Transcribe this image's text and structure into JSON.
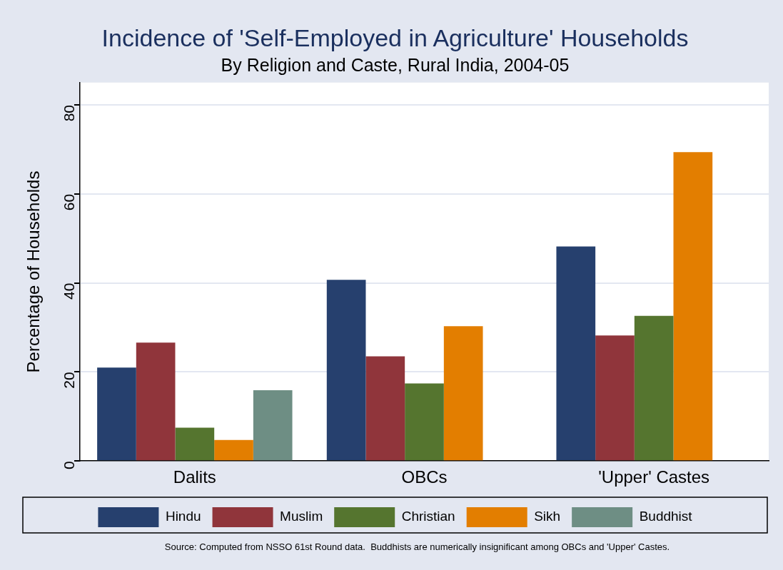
{
  "chart_data": {
    "type": "bar",
    "title": "Incidence of 'Self-Employed in Agriculture' Households",
    "subtitle": "By Religion and Caste, Rural India, 2004-05",
    "ylabel": "Percentage of Households",
    "categories": [
      "Dalits",
      "OBCs",
      "'Upper' Castes"
    ],
    "series": [
      {
        "name": "Hindu",
        "color": "#26406e",
        "values": [
          21.0,
          40.7,
          48.2
        ]
      },
      {
        "name": "Muslim",
        "color": "#90353b",
        "values": [
          26.6,
          23.5,
          28.2
        ]
      },
      {
        "name": "Christian",
        "color": "#55752f",
        "values": [
          7.5,
          17.4,
          32.6
        ]
      },
      {
        "name": "Sikh",
        "color": "#e37e00",
        "values": [
          4.7,
          30.3,
          69.4
        ]
      },
      {
        "name": "Buddhist",
        "color": "#6e8e84",
        "values": [
          15.9,
          null,
          null
        ]
      }
    ],
    "ylim": [
      0,
      85
    ],
    "yticks": [
      0,
      20,
      40,
      60,
      80
    ],
    "grid": "y",
    "legend": "bottom",
    "annotations": [
      "Source: Computed from NSSO 61st Round data.  Buddhists are numerically insignificant among OBCs and 'Upper' Castes."
    ]
  }
}
